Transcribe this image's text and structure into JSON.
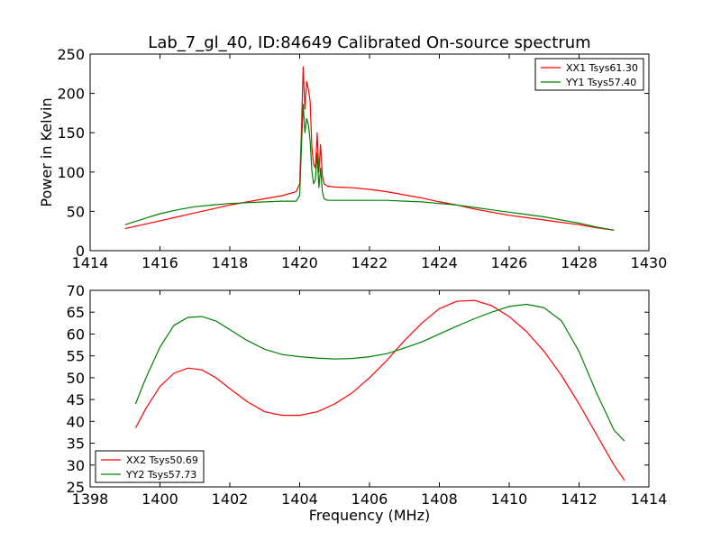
{
  "title": "Lab_7_gl_40, ID:84649 Calibrated On-source spectrum",
  "chart_data": [
    {
      "type": "line",
      "title": "Lab_7_gl_40, ID:84649 Calibrated On-source spectrum",
      "xlabel": "",
      "ylabel": "Power in Kelvin",
      "xlim": [
        1414,
        1430
      ],
      "ylim": [
        0,
        250
      ],
      "xticks": [
        "1414",
        "1416",
        "1418",
        "1420",
        "1422",
        "1424",
        "1426",
        "1428",
        "1430"
      ],
      "yticks": [
        "0",
        "50",
        "100",
        "150",
        "200",
        "250"
      ],
      "legend_position": "top-right",
      "grid": false,
      "series": [
        {
          "name": "XX1 Tsys61.30",
          "color": "#ff0000",
          "x": [
            1415.0,
            1415.5,
            1416.0,
            1416.5,
            1417.0,
            1417.5,
            1418.0,
            1418.5,
            1419.0,
            1419.5,
            1419.9,
            1420.0,
            1420.05,
            1420.1,
            1420.15,
            1420.2,
            1420.25,
            1420.3,
            1420.35,
            1420.4,
            1420.45,
            1420.5,
            1420.55,
            1420.6,
            1420.65,
            1420.7,
            1420.8,
            1421.0,
            1421.5,
            1422.0,
            1422.5,
            1423.0,
            1423.5,
            1424.0,
            1424.5,
            1425.0,
            1425.5,
            1426.0,
            1426.5,
            1427.0,
            1427.5,
            1428.0,
            1428.5,
            1429.0
          ],
          "y": [
            28,
            33,
            38,
            43,
            48,
            53,
            58,
            62,
            66,
            70,
            75,
            85,
            150,
            234,
            180,
            215,
            205,
            190,
            130,
            110,
            105,
            150,
            100,
            135,
            95,
            85,
            82,
            81,
            80,
            78,
            75,
            71,
            67,
            62,
            58,
            53,
            49,
            45,
            42,
            39,
            36,
            33,
            29,
            26
          ]
        },
        {
          "name": "YY1 Tsys57.40",
          "color": "#008000",
          "x": [
            1415.0,
            1415.5,
            1416.0,
            1416.5,
            1417.0,
            1417.5,
            1418.0,
            1418.5,
            1419.0,
            1419.5,
            1419.9,
            1420.0,
            1420.05,
            1420.1,
            1420.15,
            1420.2,
            1420.25,
            1420.3,
            1420.35,
            1420.4,
            1420.45,
            1420.5,
            1420.55,
            1420.6,
            1420.65,
            1420.7,
            1420.8,
            1421.0,
            1421.5,
            1422.0,
            1422.5,
            1423.0,
            1423.5,
            1424.0,
            1424.5,
            1425.0,
            1425.5,
            1426.0,
            1426.5,
            1427.0,
            1427.5,
            1428.0,
            1428.5,
            1429.0
          ],
          "y": [
            33,
            40,
            47,
            52,
            56,
            58,
            60,
            61,
            62,
            63,
            63,
            70,
            130,
            186,
            150,
            168,
            160,
            140,
            100,
            85,
            90,
            124,
            80,
            105,
            75,
            66,
            64,
            64,
            64,
            64,
            64,
            63,
            62,
            60,
            58,
            55,
            52,
            49,
            46,
            43,
            39,
            35,
            30,
            26
          ]
        }
      ]
    },
    {
      "type": "line",
      "title": "",
      "xlabel": "Frequency (MHz)",
      "ylabel": "",
      "xlim": [
        1398,
        1414
      ],
      "ylim": [
        25,
        70
      ],
      "xticks": [
        "1398",
        "1400",
        "1402",
        "1404",
        "1406",
        "1408",
        "1410",
        "1412",
        "1414"
      ],
      "yticks": [
        "25",
        "30",
        "35",
        "40",
        "45",
        "50",
        "55",
        "60",
        "65",
        "70"
      ],
      "legend_position": "bottom-left",
      "grid": false,
      "series": [
        {
          "name": "XX2 Tsys50.69",
          "color": "#ff0000",
          "x": [
            1399.3,
            1399.6,
            1400.0,
            1400.4,
            1400.8,
            1401.2,
            1401.6,
            1402.0,
            1402.5,
            1403.0,
            1403.5,
            1404.0,
            1404.5,
            1405.0,
            1405.5,
            1406.0,
            1406.5,
            1407.0,
            1407.5,
            1408.0,
            1408.5,
            1409.0,
            1409.5,
            1410.0,
            1410.5,
            1411.0,
            1411.5,
            1412.0,
            1412.5,
            1413.0,
            1413.3
          ],
          "y": [
            38.5,
            43,
            48,
            51,
            52.2,
            51.8,
            50,
            47.5,
            44.5,
            42.2,
            41.4,
            41.4,
            42.2,
            44,
            46.5,
            50,
            54,
            58.5,
            62.5,
            65.8,
            67.5,
            67.7,
            66.5,
            64,
            60.5,
            56,
            50.5,
            44,
            37,
            30,
            26.5
          ]
        },
        {
          "name": "YY2 Tsys57.73",
          "color": "#008000",
          "x": [
            1399.3,
            1399.6,
            1400.0,
            1400.4,
            1400.8,
            1401.2,
            1401.6,
            1402.0,
            1402.5,
            1403.0,
            1403.5,
            1404.0,
            1404.5,
            1405.0,
            1405.5,
            1406.0,
            1406.5,
            1407.0,
            1407.5,
            1408.0,
            1408.5,
            1409.0,
            1409.5,
            1410.0,
            1410.5,
            1411.0,
            1411.5,
            1412.0,
            1412.5,
            1413.0,
            1413.3
          ],
          "y": [
            44,
            50,
            57,
            62,
            63.8,
            64,
            63,
            61,
            58.5,
            56.5,
            55.3,
            54.8,
            54.5,
            54.3,
            54.4,
            54.8,
            55.5,
            56.8,
            58.2,
            60,
            61.8,
            63.5,
            65,
            66.3,
            66.8,
            66,
            63,
            56,
            46.5,
            38,
            35.5
          ]
        }
      ]
    }
  ]
}
